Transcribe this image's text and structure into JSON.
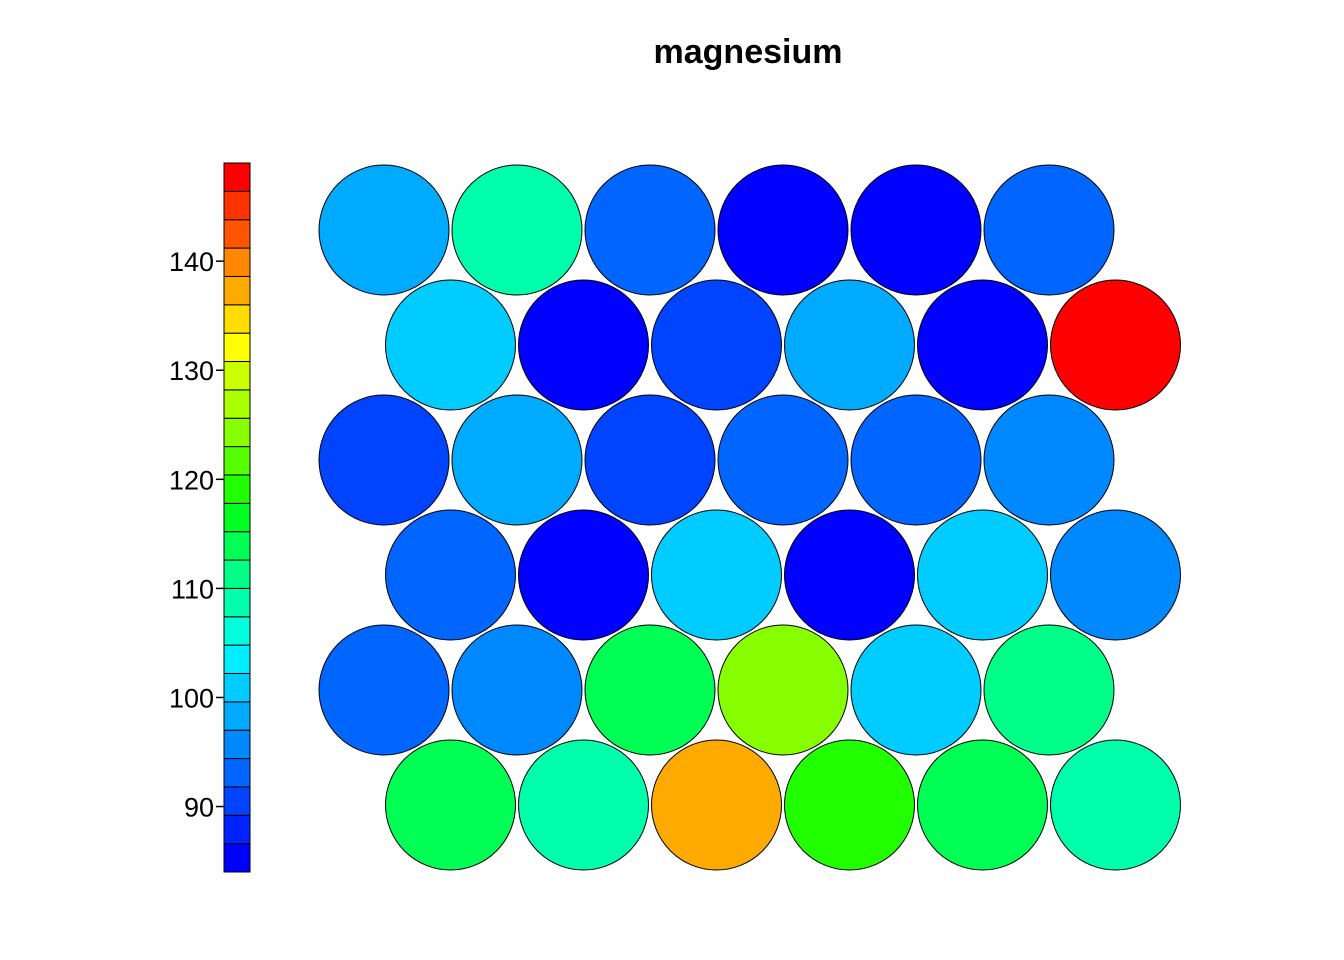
{
  "chart_data": {
    "type": "heatmap",
    "title": "magnesium",
    "layout": "hexagonal",
    "grid": {
      "rows": 6,
      "cols": 6
    },
    "colorbar": {
      "range": [
        84,
        149
      ],
      "ticks": [
        90,
        100,
        110,
        120,
        130,
        140
      ],
      "tick_labels": [
        "90",
        "100",
        "110",
        "120",
        "130",
        "140"
      ],
      "colors": [
        "#0000FF",
        "#0022FF",
        "#0044FF",
        "#0066FF",
        "#0088FF",
        "#00AAFF",
        "#00CCFF",
        "#00EEFF",
        "#00FFDD",
        "#00FFAA",
        "#00FF88",
        "#00FF55",
        "#00FF22",
        "#22FF00",
        "#55FF00",
        "#88FF00",
        "#AAFF00",
        "#CCFF00",
        "#FFFF00",
        "#FFDD00",
        "#FFAA00",
        "#FF8800",
        "#FF5500",
        "#FF3300",
        "#FF0000"
      ]
    },
    "cells": [
      {
        "row": 1,
        "values": [
          99,
          108,
          93,
          85,
          85,
          93
        ]
      },
      {
        "row": 2,
        "values": [
          102,
          85,
          91,
          97,
          85,
          149
        ]
      },
      {
        "row": 3,
        "values": [
          91,
          99,
          91,
          93,
          93,
          96
        ]
      },
      {
        "row": 4,
        "values": [
          93,
          85,
          102,
          85,
          102,
          96
        ]
      },
      {
        "row": 5,
        "values": [
          93,
          96,
          114,
          125,
          102,
          112
        ]
      },
      {
        "row": 6,
        "values": [
          114,
          108,
          137,
          118,
          114,
          108
        ]
      }
    ]
  }
}
